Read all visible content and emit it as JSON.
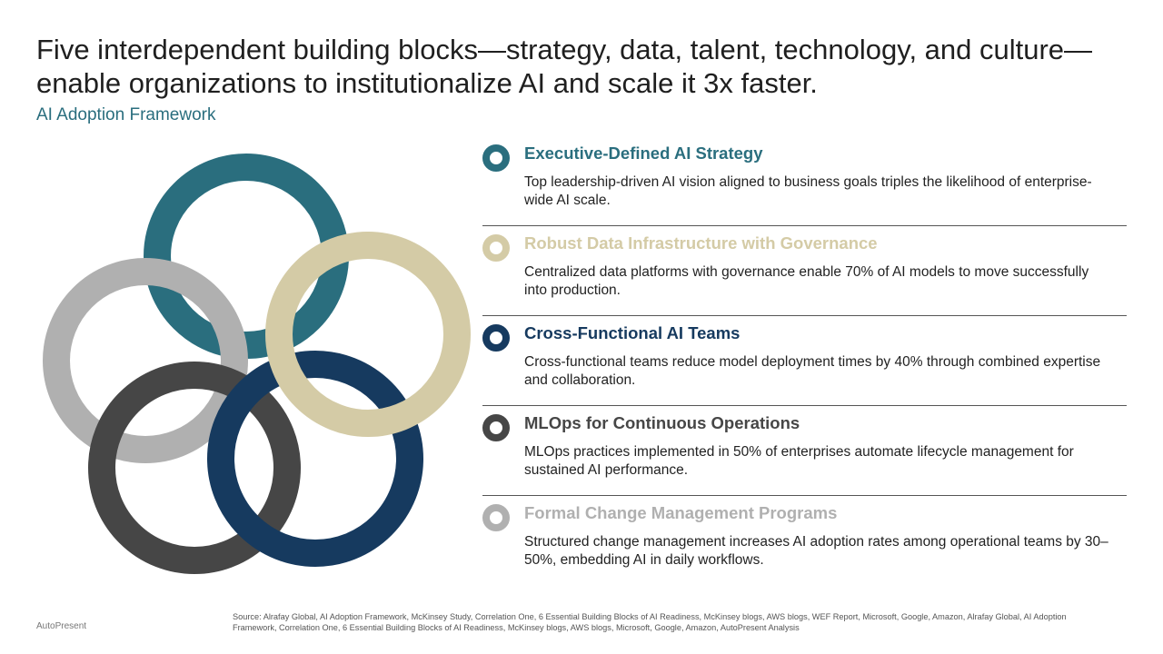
{
  "title": "Five interdependent building blocks—strategy, data, talent, technology, and culture—enable organizations to institutionalize AI and scale it 3x faster.",
  "subtitle": "AI Adoption Framework",
  "colors": {
    "teal": "#2a6e7e",
    "beige": "#d4cba6",
    "navy": "#163a5f",
    "charcoal": "#464646",
    "lightgray": "#b0b0b0"
  },
  "items": [
    {
      "heading": "Executive-Defined AI Strategy",
      "text": "Top leadership-driven AI vision aligned to business goals triples the likelihood of enterprise-wide AI scale.",
      "color": "#2a6e7e"
    },
    {
      "heading": "Robust Data Infrastructure with Governance",
      "text": "Centralized data platforms with governance enable 70% of AI models to move successfully into production.",
      "color": "#d4cba6"
    },
    {
      "heading": "Cross-Functional AI Teams",
      "text": "Cross-functional teams reduce model deployment times by 40% through combined expertise and collaboration.",
      "color": "#163a5f"
    },
    {
      "heading": "MLOps for Continuous Operations",
      "text": "MLOps practices implemented in 50% of enterprises automate lifecycle management for sustained AI performance.",
      "color": "#464646"
    },
    {
      "heading": "Formal Change Management Programs",
      "text": "Structured change management increases AI adoption rates among operational teams by 30–50%, embedding AI in daily workflows.",
      "color": "#b0b0b0"
    }
  ],
  "footer": {
    "brand": "AutoPresent",
    "source": "Source: Alrafay Global, AI Adoption Framework, McKinsey Study, Correlation One, 6 Essential Building Blocks of AI Readiness, McKinsey blogs, AWS blogs, WEF Report, Microsoft, Google, Amazon, Alrafay Global, AI Adoption Framework, Correlation One, 6 Essential Building Blocks of AI Readiness, McKinsey blogs, AWS blogs, Microsoft, Google, Amazon, AutoPresent Analysis"
  }
}
